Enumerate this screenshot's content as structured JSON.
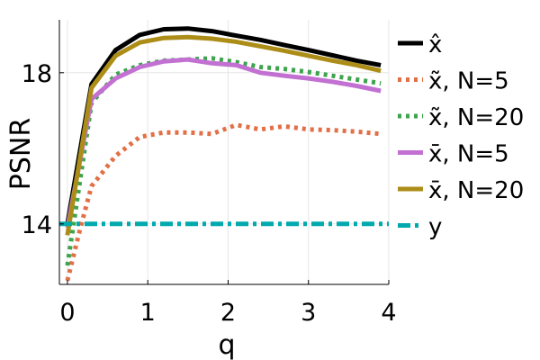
{
  "chart_data": {
    "type": "line",
    "title": "",
    "xlabel": "q",
    "ylabel": "PSNR",
    "xlim": [
      -0.1,
      4.0
    ],
    "ylim": [
      12.4,
      19.4
    ],
    "xticks": [
      0,
      1,
      2,
      3,
      4
    ],
    "xtick_labels": [
      "0",
      "1",
      "2",
      "3",
      "4"
    ],
    "yticks": [
      14,
      18
    ],
    "ytick_labels": [
      "14",
      "18"
    ],
    "grid": true,
    "legend_position": "right",
    "series": [
      {
        "name": "x̂",
        "color": "#000000",
        "style": "solid",
        "x": [
          0.0,
          0.3,
          0.6,
          0.9,
          1.2,
          1.5,
          1.8,
          2.1,
          2.4,
          2.7,
          3.0,
          3.3,
          3.6,
          3.9
        ],
        "y": [
          14.0,
          17.7,
          18.6,
          19.0,
          19.15,
          19.17,
          19.1,
          18.98,
          18.87,
          18.73,
          18.6,
          18.46,
          18.32,
          18.2
        ]
      },
      {
        "name": "x̃, N=5",
        "color": "#e26f46",
        "style": "dotted",
        "x": [
          0.0,
          0.15,
          0.3,
          0.6,
          0.9,
          1.2,
          1.5,
          1.8,
          2.1,
          2.4,
          2.7,
          3.0,
          3.3,
          3.6,
          3.9
        ],
        "y": [
          12.5,
          13.8,
          15.0,
          15.8,
          16.3,
          16.42,
          16.42,
          16.38,
          16.62,
          16.5,
          16.58,
          16.5,
          16.48,
          16.44,
          16.38
        ]
      },
      {
        "name": "x̃, N=20",
        "color": "#3da44d",
        "style": "dotted",
        "x": [
          0.0,
          0.3,
          0.6,
          0.9,
          1.2,
          1.5,
          1.8,
          2.1,
          2.4,
          2.7,
          3.0,
          3.3,
          3.6,
          3.9
        ],
        "y": [
          12.9,
          17.2,
          17.95,
          18.2,
          18.32,
          18.35,
          18.38,
          18.28,
          18.15,
          18.1,
          18.02,
          17.92,
          17.82,
          17.72
        ]
      },
      {
        "name": "x̄, N=5",
        "color": "#c271d2",
        "style": "solid",
        "x": [
          0.0,
          0.3,
          0.6,
          0.9,
          1.2,
          1.5,
          1.8,
          2.1,
          2.4,
          2.7,
          3.0,
          3.3,
          3.6,
          3.9
        ],
        "y": [
          13.9,
          17.3,
          17.85,
          18.15,
          18.3,
          18.35,
          18.25,
          18.2,
          18.0,
          17.92,
          17.85,
          17.76,
          17.65,
          17.52
        ]
      },
      {
        "name": "x̄, N=20",
        "color": "#ac8d18",
        "style": "solid",
        "x": [
          0.0,
          0.3,
          0.6,
          0.9,
          1.2,
          1.5,
          1.8,
          2.1,
          2.4,
          2.7,
          3.0,
          3.3,
          3.6,
          3.9
        ],
        "y": [
          13.7,
          17.6,
          18.45,
          18.8,
          18.92,
          18.94,
          18.9,
          18.82,
          18.7,
          18.58,
          18.45,
          18.32,
          18.2,
          18.05
        ]
      },
      {
        "name": "y",
        "color": "#00a9ad",
        "style": "dashdot",
        "x": [
          -0.1,
          4.0
        ],
        "y": [
          14.0,
          14.0
        ]
      }
    ]
  }
}
